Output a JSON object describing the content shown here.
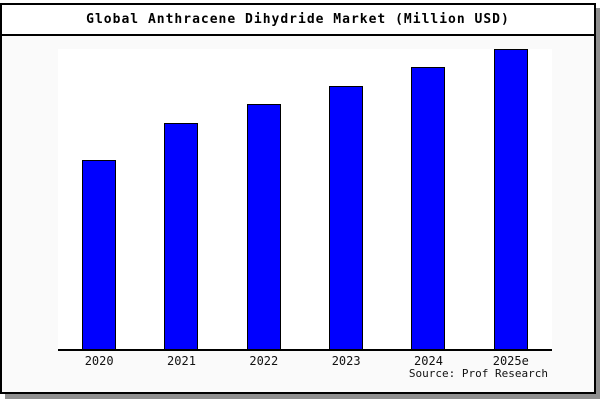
{
  "page": {
    "title": "Global Anthracene Dihydride Market (Million USD)",
    "source_text": "Source: Prof Research"
  },
  "colors": {
    "panel_background": "#fafafa",
    "plot_background": "#ffffff",
    "frame_border": "#000000",
    "frame_shadow": "#8f8f8f",
    "bar_fill": "#0000ff",
    "bar_edge": "#000000",
    "text": "#000000"
  },
  "chart_data": {
    "type": "bar",
    "title": "Global Anthracene Dihydride Market (Million USD)",
    "categories": [
      "2020",
      "2021",
      "2022",
      "2023",
      "2024",
      "2025e"
    ],
    "values": [
      63,
      75.3,
      81.7,
      87.7,
      94,
      100
    ],
    "value_note": "No y-axis or data labels shown; values estimated from bar pixel heights as percent of tallest (2025e) bar",
    "ylim": [
      0,
      100
    ],
    "xlabel": "",
    "ylabel": "",
    "legend": "none",
    "grid": false,
    "bar_color": "#0000ff",
    "bar_edge_color": "#000000",
    "source": "Source: Prof Research"
  }
}
